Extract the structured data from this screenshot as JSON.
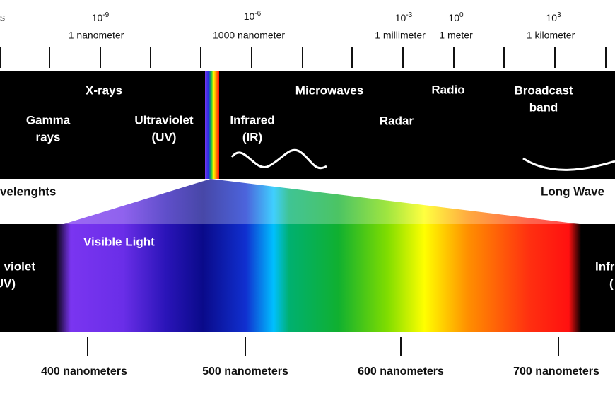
{
  "scale": {
    "cut_label": "s",
    "ticks": [
      {
        "base": "10",
        "exponent": "-9",
        "label": "1 nanometer"
      },
      {
        "base": "10",
        "exponent": "-6",
        "label": "1000 nanometer"
      },
      {
        "base": "10",
        "exponent": "-3",
        "label": "1 millimeter"
      },
      {
        "base": "10",
        "exponent": "0",
        "label": "1 meter"
      },
      {
        "base": "10",
        "exponent": "3",
        "label": "1 kilometer"
      }
    ]
  },
  "bands": [
    {
      "lines": [
        "X-rays"
      ]
    },
    {
      "lines": [
        "Gamma",
        "rays"
      ]
    },
    {
      "lines": [
        "Ultraviolet",
        "(UV)"
      ]
    },
    {
      "lines": [
        "Infrared",
        "(IR)"
      ]
    },
    {
      "lines": [
        "Microwaves"
      ]
    },
    {
      "lines": [
        "Radar"
      ]
    },
    {
      "lines": [
        "Radio"
      ]
    },
    {
      "lines": [
        "Broadcast",
        "band"
      ]
    }
  ],
  "wavelength_labels": {
    "short": "velenghts",
    "long": "Long Wave"
  },
  "visible": {
    "title": "Visible Light",
    "left_lines": [
      "violet",
      "UV)"
    ],
    "right_lines": [
      "Infr",
      "("
    ]
  },
  "nanometer_labels": [
    "400 nanometers",
    "500 nanometers",
    "600 nanometers",
    "700 nanometers"
  ]
}
